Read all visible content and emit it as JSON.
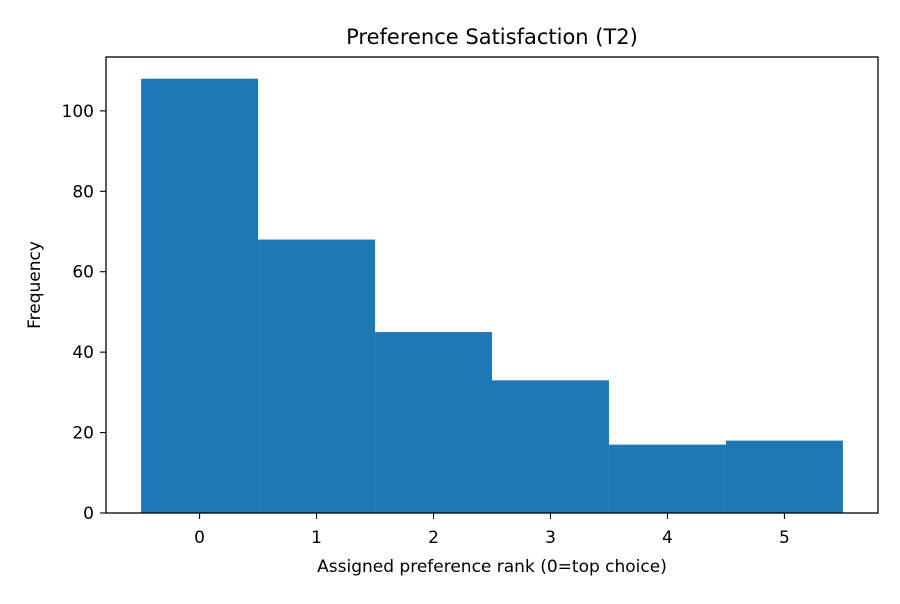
{
  "chart_data": {
    "type": "bar",
    "title": "Preference Satisfaction (T2)",
    "xlabel": "Assigned preference rank (0=top choice)",
    "ylabel": "Frequency",
    "categories": [
      "0",
      "1",
      "2",
      "3",
      "4",
      "5"
    ],
    "values": [
      108,
      68,
      45,
      33,
      17,
      18
    ],
    "xlim": [
      -0.8,
      5.8
    ],
    "ylim": [
      0,
      113.4
    ],
    "xticks": [
      0,
      1,
      2,
      3,
      4,
      5
    ],
    "yticks": [
      0,
      20,
      40,
      60,
      80,
      100
    ],
    "bar_color": "#1f77b4",
    "grid": false,
    "legend": "none"
  }
}
